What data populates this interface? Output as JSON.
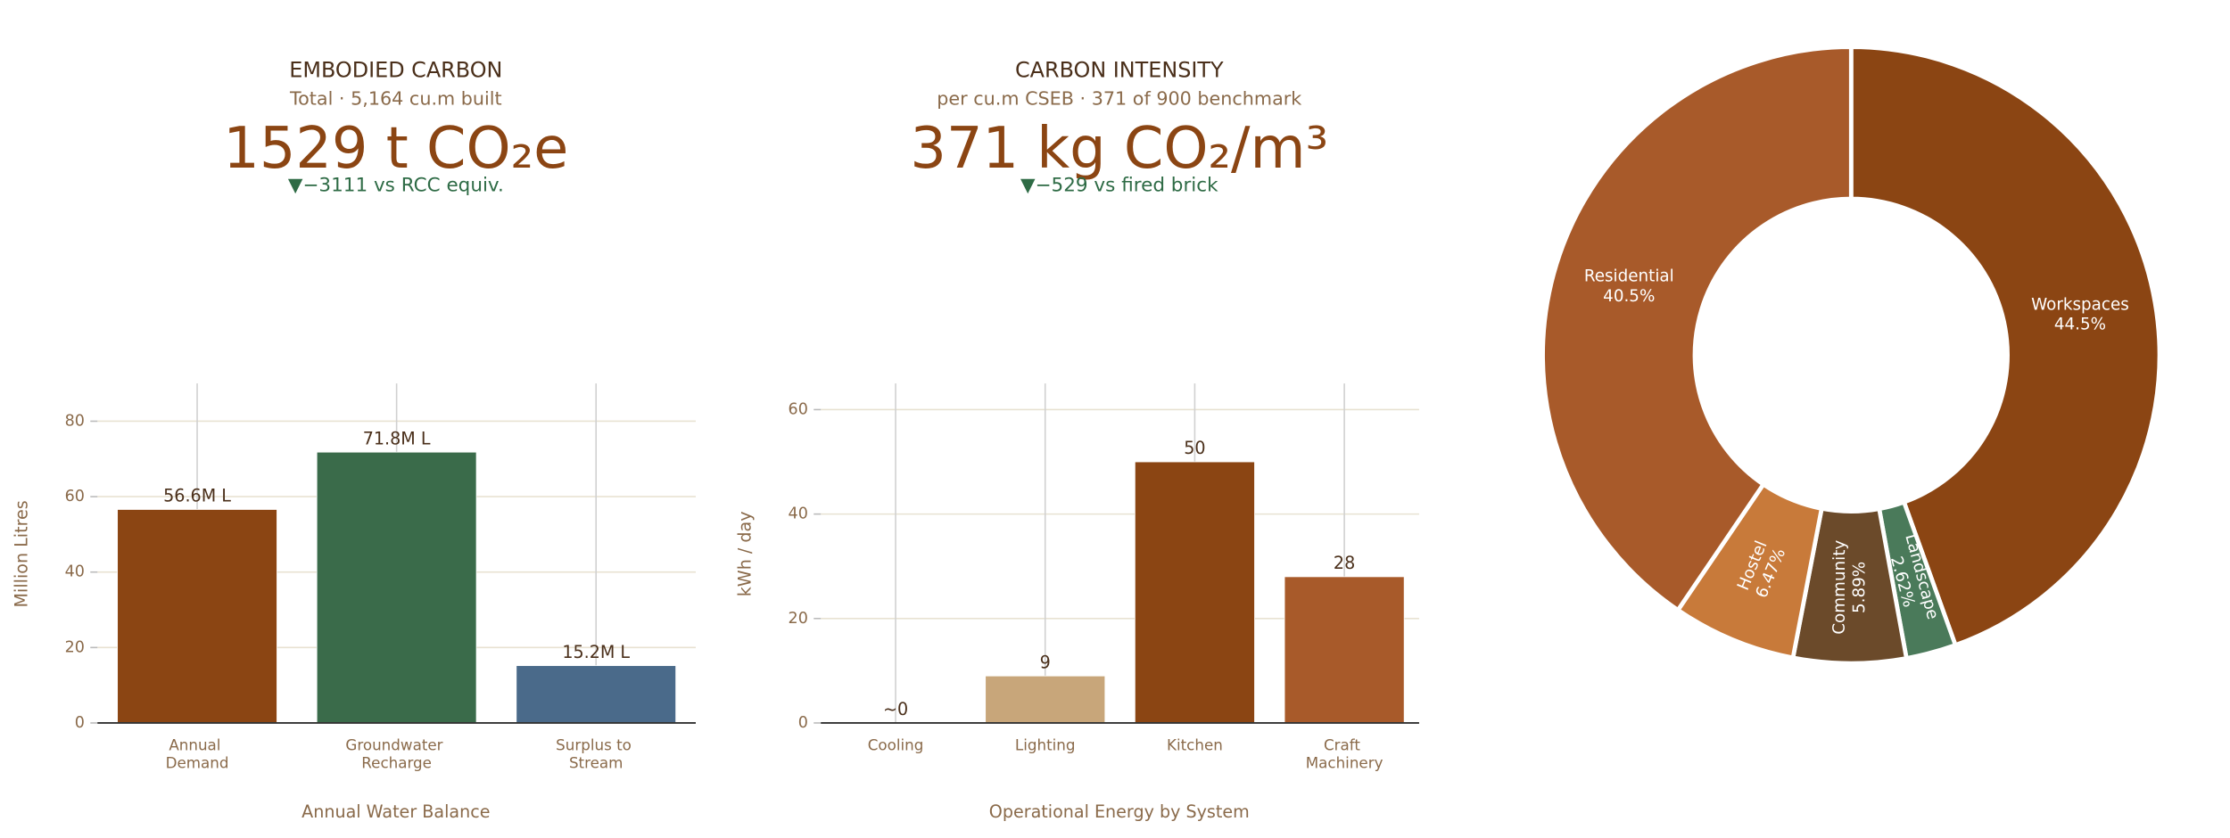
{
  "chart_data": [
    {
      "type": "indicator",
      "title": "EMBODIED CARBON",
      "subtitle": "Total · 5,164 cu.m built",
      "value": 1529,
      "value_label": "1529 t CO₂e",
      "delta": -3111,
      "delta_label": "▼−3111 vs RCC equiv.",
      "color": "#8b4513",
      "delta_color": "#2e6b45"
    },
    {
      "type": "indicator",
      "title": "CARBON INTENSITY",
      "subtitle": "per cu.m CSEB · 371 of 900 benchmark",
      "value": 371,
      "value_label": "371 kg CO₂/m³",
      "delta": -529,
      "delta_label": "▼−529 vs fired brick",
      "color": "#8b4513",
      "delta_color": "#2e6b45"
    },
    {
      "type": "bar",
      "title": "Annual Water Balance",
      "y_label": "Million Litres",
      "categories": [
        "Annual Demand",
        "Groundwater Recharge",
        "Surplus to Stream"
      ],
      "values": [
        56.6,
        71.8,
        15.2
      ],
      "value_labels": [
        "56.6M L",
        "71.8M L",
        "15.2M L"
      ],
      "colors": [
        "#8b4513",
        "#3a6b4a",
        "#4a6a8a"
      ],
      "ylim": [
        0,
        90
      ],
      "yticks": [
        0,
        20,
        40,
        60,
        80
      ],
      "grid": true
    },
    {
      "type": "bar",
      "title": "Operational Energy by System",
      "y_label": "kWh / day",
      "categories": [
        "Cooling",
        "Lighting",
        "Kitchen",
        "Craft Machinery"
      ],
      "values": [
        0,
        9,
        50,
        28
      ],
      "value_labels": [
        "~0",
        "9",
        "50",
        "28"
      ],
      "colors": [
        "#7a9cc0",
        "#c8a67a",
        "#8b4513",
        "#a85a2a"
      ],
      "ylim": [
        0,
        65
      ],
      "yticks": [
        0,
        20,
        40,
        60
      ],
      "grid": true
    },
    {
      "type": "pie",
      "labels": [
        "Workspaces",
        "Landscape",
        "Community",
        "Hostel",
        "Residential"
      ],
      "values": [
        44.5,
        2.62,
        5.89,
        6.47,
        40.5
      ],
      "value_labels": [
        "44.5%",
        "2.62%",
        "5.89%",
        "6.47%",
        "40.5%"
      ],
      "colors": [
        "#8b4513",
        "#4a7a5a",
        "#6b4a2a",
        "#c87a3a",
        "#a85a2a"
      ],
      "hole": 0.507
    }
  ]
}
